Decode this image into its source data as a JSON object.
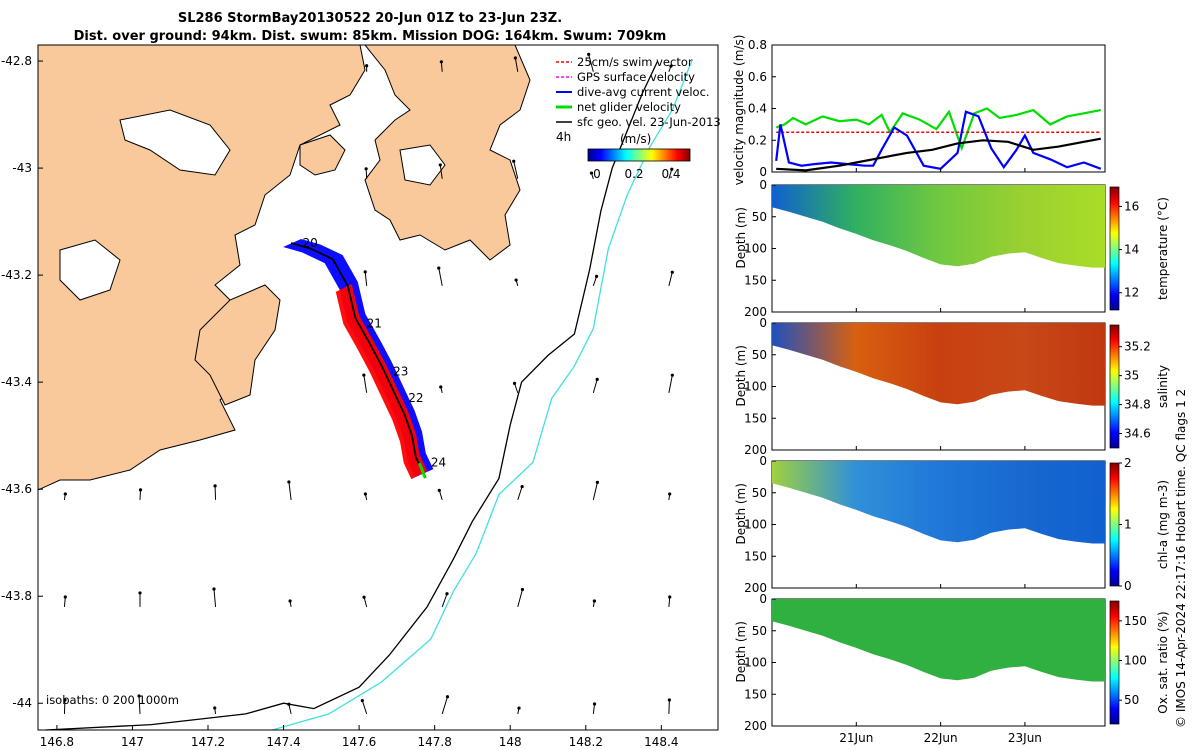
{
  "title": {
    "line1": "SL286 StormBay20130522 20-Jun 01Z to 23-Jun 23Z.",
    "line2": "Dist. over ground: 94km. Dist. swum: 85km. Mission DOG: 164km. Swum: 709km"
  },
  "credit": "© IMOS 14-Apr-2024 22:17:16 Hobart time. QC flags 1  2",
  "colors": {
    "land": "#f9c89b",
    "glider_track": "#000000",
    "isobath_200": "#000000",
    "isobath_1000": "#40e0e0",
    "swim": "#ff0000",
    "gps": "#ff00ff",
    "dive_avg": "#0000ff",
    "net": "#00dd00",
    "sfc": "#000000"
  },
  "legend": {
    "items": [
      {
        "label": "25cm/s swim vector",
        "color": "#ff0000",
        "style": "dashed"
      },
      {
        "label": "GPS surface velocity",
        "color": "#ff00ff",
        "style": "dashed"
      },
      {
        "label": "dive-avg current veloc.",
        "color": "#0000ff",
        "style": "solid"
      },
      {
        "label": "net glider velocity",
        "color": "#00dd00",
        "style": "bold"
      },
      {
        "label": "sfc geo. vel. 23-Jun-2013",
        "color": "#000000",
        "style": "solid"
      }
    ],
    "time_label": "4h",
    "colorbar_title": "(m/s)",
    "colorbar_ticks": [
      "0",
      "0.2",
      "0.4"
    ]
  },
  "isobath_note": "isobaths: 0   200  1000m",
  "day_labels": [
    "20",
    "21",
    "23",
    "22",
    "24"
  ],
  "chart_data": [
    {
      "id": "map",
      "type": "scatter",
      "title": "SL286 StormBay20130522 20-Jun 01Z to 23-Jun 23Z.",
      "xlabel": "",
      "ylabel": "",
      "xlim": [
        146.75,
        148.55
      ],
      "ylim": [
        -44.05,
        -42.77
      ],
      "x_ticks": [
        "146.8",
        "147",
        "147.2",
        "147.4",
        "147.6",
        "147.8",
        "148",
        "148.2",
        "148.4"
      ],
      "x_tick_values": [
        146.8,
        147.0,
        147.2,
        147.4,
        147.6,
        147.8,
        148.0,
        148.2,
        148.4
      ],
      "y_ticks": [
        "-42.8",
        "-43",
        "-43.2",
        "-43.4",
        "-43.6",
        "-43.8",
        "-44"
      ],
      "y_tick_values": [
        -42.8,
        -43.0,
        -43.2,
        -43.4,
        -43.6,
        -43.8,
        -44.0
      ],
      "glider_track": [
        [
          147.42,
          -43.14
        ],
        [
          147.47,
          -43.15
        ],
        [
          147.53,
          -43.17
        ],
        [
          147.57,
          -43.22
        ],
        [
          147.59,
          -43.28
        ],
        [
          147.63,
          -43.33
        ],
        [
          147.66,
          -43.37
        ],
        [
          147.68,
          -43.4
        ],
        [
          147.7,
          -43.43
        ],
        [
          147.72,
          -43.46
        ],
        [
          147.74,
          -43.5
        ],
        [
          147.75,
          -43.54
        ],
        [
          147.77,
          -43.57
        ]
      ],
      "day_markers": [
        {
          "label": "20",
          "lon": 147.45,
          "lat": -43.14
        },
        {
          "label": "21",
          "lon": 147.62,
          "lat": -43.29
        },
        {
          "label": "23",
          "lon": 147.69,
          "lat": -43.38
        },
        {
          "label": "22",
          "lon": 147.73,
          "lat": -43.43
        },
        {
          "label": "24",
          "lon": 147.79,
          "lat": -43.55
        }
      ],
      "isobath_200": [
        [
          146.77,
          -44.05
        ],
        [
          147.05,
          -44.04
        ],
        [
          147.3,
          -44.02
        ],
        [
          147.4,
          -44.0
        ],
        [
          147.48,
          -44.01
        ],
        [
          147.6,
          -43.97
        ],
        [
          147.68,
          -43.91
        ],
        [
          147.78,
          -43.82
        ],
        [
          147.85,
          -43.73
        ],
        [
          147.9,
          -43.66
        ],
        [
          147.97,
          -43.58
        ],
        [
          148.0,
          -43.48
        ],
        [
          148.03,
          -43.4
        ],
        [
          148.1,
          -43.35
        ],
        [
          148.17,
          -43.31
        ],
        [
          148.21,
          -43.19
        ],
        [
          148.24,
          -43.08
        ],
        [
          148.27,
          -43.0
        ],
        [
          148.31,
          -42.93
        ],
        [
          148.35,
          -42.86
        ],
        [
          148.39,
          -42.8
        ]
      ],
      "isobath_1000": [
        [
          147.37,
          -44.05
        ],
        [
          147.52,
          -44.02
        ],
        [
          147.66,
          -43.96
        ],
        [
          147.79,
          -43.88
        ],
        [
          147.85,
          -43.79
        ],
        [
          147.91,
          -43.72
        ],
        [
          147.97,
          -43.61
        ],
        [
          148.06,
          -43.55
        ],
        [
          148.11,
          -43.43
        ],
        [
          148.17,
          -43.37
        ],
        [
          148.22,
          -43.3
        ],
        [
          148.26,
          -43.15
        ],
        [
          148.31,
          -43.05
        ],
        [
          148.37,
          -42.96
        ],
        [
          148.43,
          -42.89
        ],
        [
          148.48,
          -42.8
        ]
      ]
    },
    {
      "id": "velocity",
      "type": "line",
      "ylabel": "velocity magnitude (m/s)",
      "ylim": [
        0,
        0.8
      ],
      "y_ticks": [
        "0",
        "0.2",
        "0.4",
        "0.6",
        "0.8"
      ],
      "y_tick_values": [
        0,
        0.2,
        0.4,
        0.6,
        0.8
      ],
      "xlim": [
        20.0,
        23.95
      ],
      "series": [
        {
          "name": "net glider velocity",
          "color": "#00dd00",
          "x": [
            20.05,
            20.15,
            20.25,
            20.4,
            20.6,
            20.8,
            21.0,
            21.15,
            21.3,
            21.4,
            21.55,
            21.75,
            21.95,
            22.1,
            22.25,
            22.4,
            22.55,
            22.7,
            22.9,
            23.1,
            23.3,
            23.5,
            23.7,
            23.9
          ],
          "y": [
            0.28,
            0.3,
            0.34,
            0.3,
            0.35,
            0.32,
            0.33,
            0.3,
            0.36,
            0.25,
            0.37,
            0.33,
            0.27,
            0.38,
            0.15,
            0.37,
            0.4,
            0.34,
            0.36,
            0.39,
            0.3,
            0.35,
            0.37,
            0.39
          ]
        },
        {
          "name": "swim vector",
          "color": "#ff0000",
          "x": [
            20.05,
            20.5,
            21.0,
            21.5,
            22.0,
            22.5,
            23.0,
            23.5,
            23.9
          ],
          "y": [
            0.25,
            0.25,
            0.25,
            0.25,
            0.25,
            0.25,
            0.25,
            0.25,
            0.25
          ]
        },
        {
          "name": "dive-avg current",
          "color": "#0000ff",
          "x": [
            20.05,
            20.1,
            20.2,
            20.35,
            20.5,
            20.7,
            20.9,
            21.1,
            21.2,
            21.3,
            21.45,
            21.6,
            21.8,
            22.0,
            22.2,
            22.3,
            22.45,
            22.6,
            22.75,
            22.9,
            23.0,
            23.1,
            23.3,
            23.5,
            23.7,
            23.9
          ],
          "y": [
            0.07,
            0.3,
            0.06,
            0.04,
            0.05,
            0.06,
            0.05,
            0.04,
            0.04,
            0.14,
            0.28,
            0.23,
            0.04,
            0.02,
            0.12,
            0.38,
            0.35,
            0.15,
            0.03,
            0.14,
            0.23,
            0.12,
            0.08,
            0.03,
            0.06,
            0.02
          ]
        },
        {
          "name": "sfc geo. vel.",
          "color": "#000000",
          "x": [
            20.05,
            20.4,
            20.8,
            21.0,
            21.3,
            21.6,
            21.9,
            22.2,
            22.5,
            22.8,
            23.1,
            23.4,
            23.7,
            23.9
          ],
          "y": [
            0.02,
            0.01,
            0.04,
            0.06,
            0.09,
            0.12,
            0.14,
            0.18,
            0.2,
            0.19,
            0.14,
            0.16,
            0.19,
            0.21
          ]
        }
      ]
    },
    {
      "id": "temperature",
      "type": "heatmap",
      "ylabel": "Depth (m)",
      "colorbar_label": "temperature (°C)",
      "ylim": [
        200,
        0
      ],
      "y_ticks": [
        "0",
        "50",
        "100",
        "150",
        "200"
      ],
      "y_tick_values": [
        0,
        50,
        100,
        150,
        200
      ],
      "clim": [
        11.2,
        16.9
      ],
      "colorbar_ticks": [
        "12",
        "14",
        "16"
      ],
      "colorbar_tick_values": [
        12,
        14,
        16
      ],
      "bottom_profile": {
        "x": [
          20.0,
          20.2,
          20.4,
          20.6,
          20.8,
          21.0,
          21.2,
          21.4,
          21.6,
          21.8,
          22.0,
          22.2,
          22.4,
          22.6,
          22.8,
          23.0,
          23.2,
          23.4,
          23.6,
          23.8,
          23.95
        ],
        "depth": [
          35,
          42,
          50,
          58,
          68,
          77,
          87,
          95,
          104,
          115,
          125,
          128,
          124,
          113,
          108,
          106,
          115,
          123,
          127,
          130,
          130
        ]
      },
      "values": [
        {
          "x": 20.0,
          "v": 13.0
        },
        {
          "x": 20.3,
          "v": 14.6
        },
        {
          "x": 20.8,
          "v": 14.8
        },
        {
          "x": 21.3,
          "v": 15.0
        },
        {
          "x": 21.8,
          "v": 15.6
        },
        {
          "x": 22.3,
          "v": 15.4
        },
        {
          "x": 22.8,
          "v": 15.6
        },
        {
          "x": 23.3,
          "v": 15.3
        },
        {
          "x": 23.9,
          "v": 15.5
        }
      ]
    },
    {
      "id": "salinity",
      "type": "heatmap",
      "ylabel": "Depth (m)",
      "colorbar_label": "salinity",
      "ylim": [
        200,
        0
      ],
      "y_ticks": [
        "0",
        "50",
        "100",
        "150",
        "200"
      ],
      "y_tick_values": [
        0,
        50,
        100,
        150,
        200
      ],
      "clim": [
        34.5,
        35.35
      ],
      "colorbar_ticks": [
        "34.6",
        "34.8",
        "35",
        "35.2"
      ],
      "colorbar_tick_values": [
        34.6,
        34.8,
        35.0,
        35.2
      ],
      "values": [
        {
          "x": 20.0,
          "v": 34.7
        },
        {
          "x": 20.3,
          "v": 35.15
        },
        {
          "x": 20.8,
          "v": 35.2
        },
        {
          "x": 21.3,
          "v": 35.25
        },
        {
          "x": 21.8,
          "v": 35.28
        },
        {
          "x": 22.3,
          "v": 35.27
        },
        {
          "x": 22.8,
          "v": 35.3
        },
        {
          "x": 23.3,
          "v": 35.28
        },
        {
          "x": 23.9,
          "v": 35.3
        }
      ]
    },
    {
      "id": "chla",
      "type": "heatmap",
      "ylabel": "Depth (m)",
      "colorbar_label": "chl-a (mg m-3)",
      "ylim": [
        200,
        0
      ],
      "y_ticks": [
        "0",
        "50",
        "100",
        "150",
        "200"
      ],
      "y_tick_values": [
        0,
        50,
        100,
        150,
        200
      ],
      "clim": [
        0,
        2
      ],
      "colorbar_ticks": [
        "0",
        "1",
        "2"
      ],
      "colorbar_tick_values": [
        0,
        1,
        2
      ],
      "values": [
        {
          "x": 20.0,
          "v": 0.75
        },
        {
          "x": 20.5,
          "v": 0.55
        },
        {
          "x": 21.0,
          "v": 0.5
        },
        {
          "x": 21.5,
          "v": 0.45
        },
        {
          "x": 22.0,
          "v": 0.4
        },
        {
          "x": 22.5,
          "v": 0.38
        },
        {
          "x": 23.0,
          "v": 0.35
        },
        {
          "x": 23.5,
          "v": 0.33
        },
        {
          "x": 23.9,
          "v": 0.3
        }
      ]
    },
    {
      "id": "oxygen",
      "type": "heatmap",
      "ylabel": "Depth (m)",
      "colorbar_label": "Ox. sat. ratio (%)",
      "ylim": [
        200,
        0
      ],
      "y_ticks": [
        "0",
        "50",
        "100",
        "150",
        "200"
      ],
      "y_tick_values": [
        0,
        50,
        100,
        150,
        200
      ],
      "clim": [
        20,
        175
      ],
      "colorbar_ticks": [
        "50",
        "100",
        "150"
      ],
      "colorbar_tick_values": [
        50,
        100,
        150
      ],
      "x_ticks": [
        "21Jun",
        "22Jun",
        "23Jun"
      ],
      "x_tick_values": [
        21,
        22,
        23
      ],
      "values": [
        {
          "x": 20.0,
          "v": 100
        },
        {
          "x": 21.0,
          "v": 100
        },
        {
          "x": 22.0,
          "v": 100
        },
        {
          "x": 23.0,
          "v": 100
        },
        {
          "x": 23.9,
          "v": 100
        }
      ]
    }
  ]
}
